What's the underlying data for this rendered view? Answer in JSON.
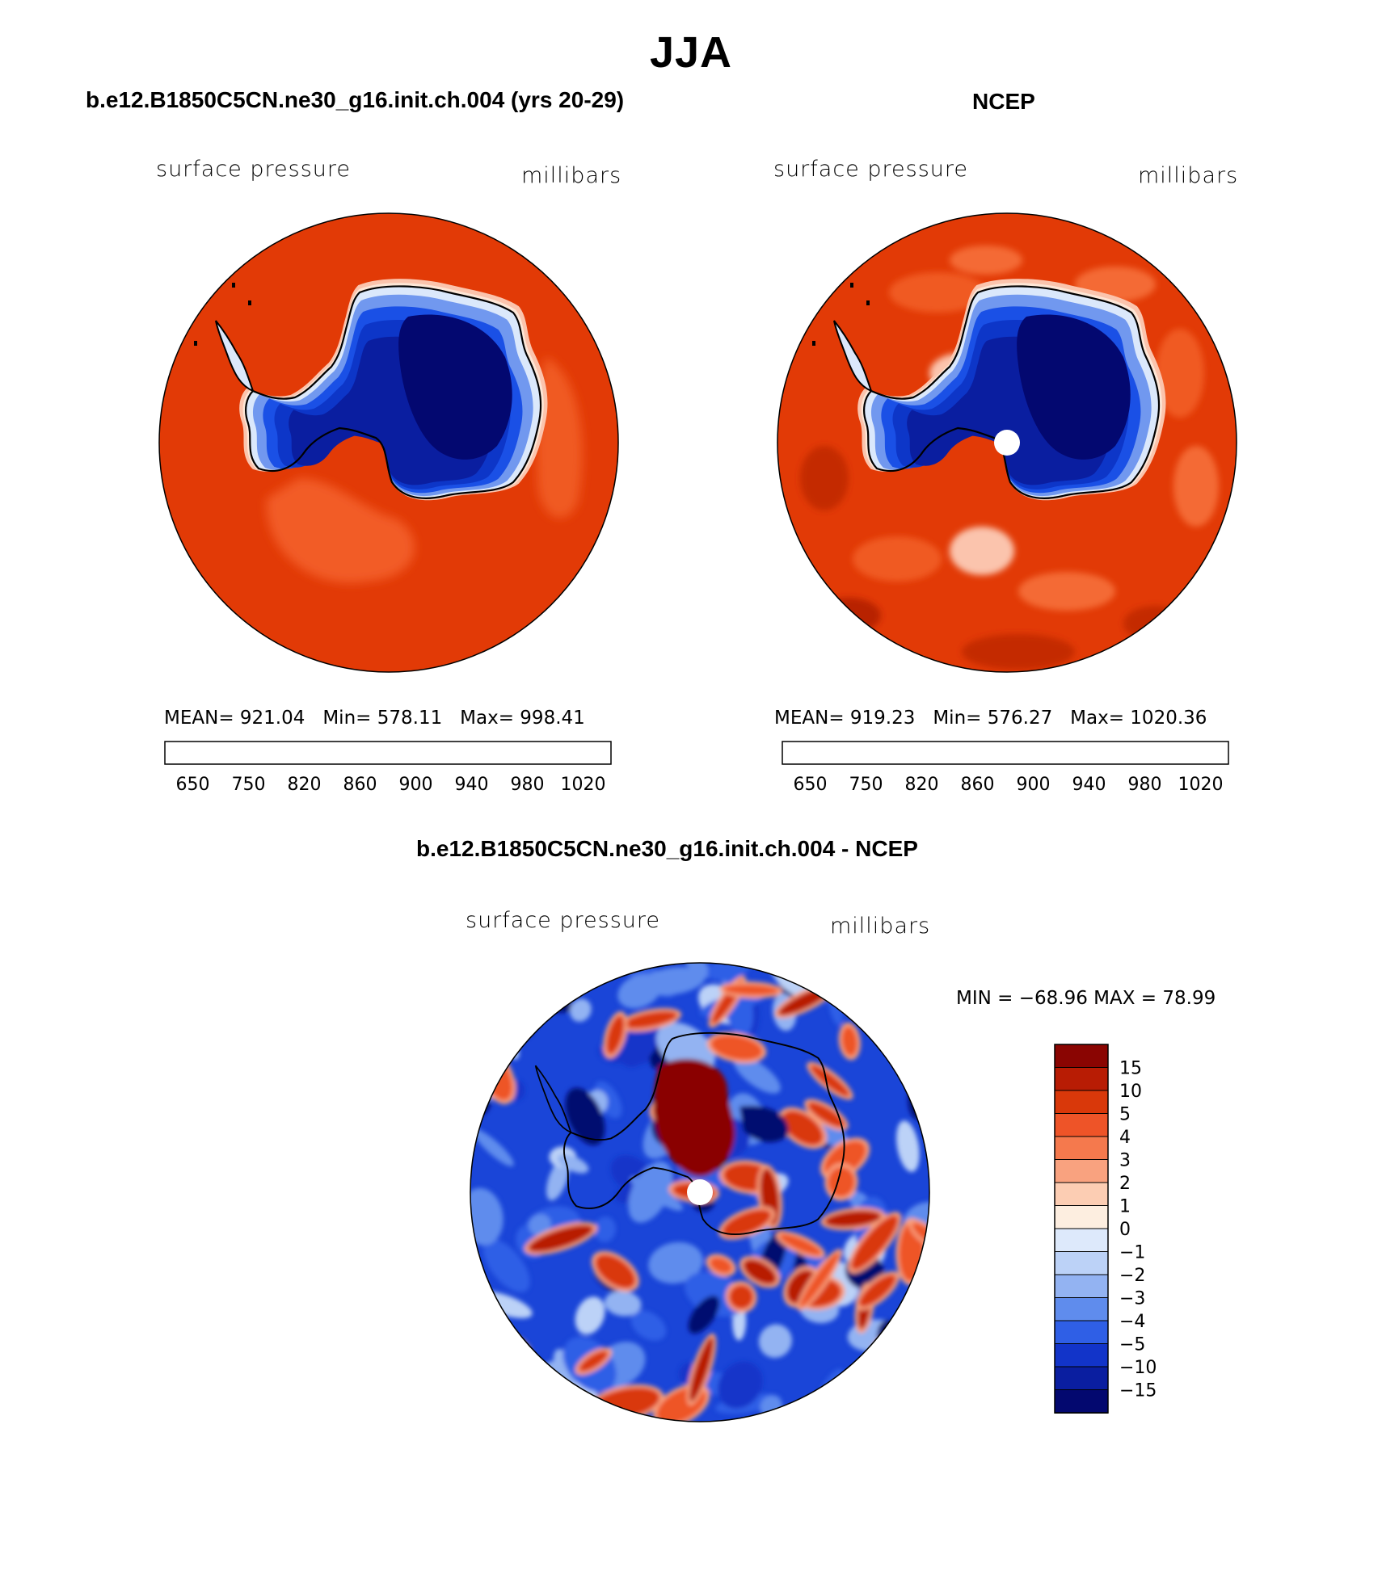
{
  "figure": {
    "season_title": "JJA"
  },
  "chart_data": [
    {
      "type": "heatmap",
      "projection": "south-polar-stereographic",
      "title": "b.e12.B1850C5CN.ne30_g16.init.ch.004 (yrs 20-29)",
      "variable": "surface pressure",
      "units": "millibars",
      "stats": {
        "mean_label": "MEAN=",
        "mean": "921.04",
        "min_label": "Min=",
        "min": "578.11",
        "max_label": "Max=",
        "max": "998.41"
      },
      "colorbar": {
        "orientation": "horizontal",
        "levels": [
          650,
          700,
          750,
          800,
          820,
          840,
          860,
          880,
          900,
          920,
          940,
          960,
          980,
          1000,
          1020
        ],
        "tick_labels": [
          "650",
          "750",
          "820",
          "860",
          "900",
          "940",
          "980",
          "1020"
        ],
        "colors": [
          "#030870",
          "#0a1ea0",
          "#0d36c8",
          "#1a50e6",
          "#3e72ec",
          "#7198ef",
          "#a8c4f4",
          "#dbe8fb",
          "#fde6d6",
          "#fbc4ad",
          "#f5a07e",
          "#f07544",
          "#e8481a",
          "#d63608",
          "#b21e02",
          "#7e0501"
        ]
      },
      "field": {
        "ocean_value": 990,
        "interior_min": 578.11
      }
    },
    {
      "type": "heatmap",
      "projection": "south-polar-stereographic",
      "title": "NCEP",
      "variable": "surface pressure",
      "units": "millibars",
      "stats": {
        "mean_label": "MEAN=",
        "mean": "919.23",
        "min_label": "Min=",
        "min": "576.27",
        "max_label": "Max=",
        "max": "1020.36"
      },
      "colorbar": {
        "orientation": "horizontal",
        "levels": [
          650,
          700,
          750,
          800,
          820,
          840,
          860,
          880,
          900,
          920,
          940,
          960,
          980,
          1000,
          1020
        ],
        "tick_labels": [
          "650",
          "750",
          "820",
          "860",
          "900",
          "940",
          "980",
          "1020"
        ],
        "colors": [
          "#030870",
          "#0a1ea0",
          "#0d36c8",
          "#1a50e6",
          "#3e72ec",
          "#7198ef",
          "#a8c4f4",
          "#dbe8fb",
          "#fde6d6",
          "#fbc4ad",
          "#f5a07e",
          "#f07544",
          "#e8481a",
          "#d63608",
          "#b21e02",
          "#7e0501"
        ]
      },
      "field": {
        "ocean_value": 990,
        "interior_min": 576.27,
        "pole_hole": true
      }
    },
    {
      "type": "heatmap",
      "projection": "south-polar-stereographic",
      "title": "b.e12.B1850C5CN.ne30_g16.init.ch.004 - NCEP",
      "variable": "surface pressure",
      "units": "millibars",
      "stats": {
        "text": "MIN = −68.96 MAX =  78.99"
      },
      "colorbar": {
        "orientation": "vertical",
        "levels": [
          -15,
          -10,
          -5,
          -4,
          -3,
          -2,
          -1,
          0,
          1,
          2,
          3,
          4,
          5,
          10,
          15
        ],
        "tick_labels": [
          "15",
          "10",
          "5",
          "4",
          "3",
          "2",
          "1",
          "0",
          "−1",
          "−2",
          "−3",
          "−4",
          "−5",
          "−10",
          "−15"
        ],
        "colors": [
          "#8a0502",
          "#b81c04",
          "#d9380a",
          "#ee5428",
          "#f5794d",
          "#f9a27f",
          "#fccdb3",
          "#fdeee0",
          "#dde9fb",
          "#bcd2f7",
          "#93b3f2",
          "#5f8ced",
          "#2f5fe6",
          "#1234c9",
          "#0a1ea0",
          "#03086f"
        ]
      },
      "field": {
        "pole_hole": true
      }
    }
  ]
}
